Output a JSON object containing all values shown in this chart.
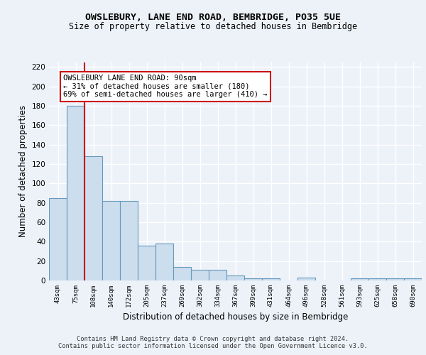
{
  "title1": "OWSLEBURY, LANE END ROAD, BEMBRIDGE, PO35 5UE",
  "title2": "Size of property relative to detached houses in Bembridge",
  "xlabel": "Distribution of detached houses by size in Bembridge",
  "ylabel": "Number of detached properties",
  "categories": [
    "43sqm",
    "75sqm",
    "108sqm",
    "140sqm",
    "172sqm",
    "205sqm",
    "237sqm",
    "269sqm",
    "302sqm",
    "334sqm",
    "367sqm",
    "399sqm",
    "431sqm",
    "464sqm",
    "496sqm",
    "528sqm",
    "561sqm",
    "593sqm",
    "625sqm",
    "658sqm",
    "690sqm"
  ],
  "values": [
    85,
    180,
    128,
    82,
    82,
    36,
    38,
    14,
    11,
    11,
    5,
    2,
    2,
    0,
    3,
    0,
    0,
    2,
    2,
    2,
    2
  ],
  "bar_color": "#ccdded",
  "bar_edge_color": "#6699bb",
  "vline_color": "#cc0000",
  "annotation_text": "OWSLEBURY LANE END ROAD: 90sqm\n← 31% of detached houses are smaller (180)\n69% of semi-detached houses are larger (410) →",
  "annotation_box_color": "#ffffff",
  "annotation_box_edge_color": "#cc0000",
  "ylim": [
    0,
    225
  ],
  "yticks": [
    0,
    20,
    40,
    60,
    80,
    100,
    120,
    140,
    160,
    180,
    200,
    220
  ],
  "footer_text": "Contains HM Land Registry data © Crown copyright and database right 2024.\nContains public sector information licensed under the Open Government Licence v3.0.",
  "bg_color": "#edf2f9",
  "grid_color": "#ffffff"
}
